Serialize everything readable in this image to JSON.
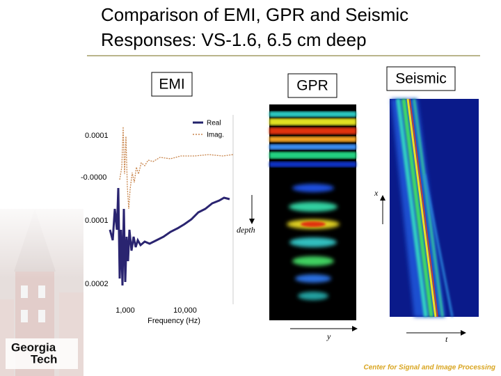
{
  "title": [
    "Comparison of EMI, GPR and Seismic",
    "Responses:  VS-1.6, 6.5 cm deep"
  ],
  "panels": {
    "emi": {
      "label": "EMI",
      "legend": [
        "Real",
        "Imag."
      ],
      "y_labels": [
        "0.0001",
        "-0.0000",
        "0.0001",
        "0.0002"
      ],
      "x_labels": [
        "1,000",
        "10,000"
      ],
      "x_axis_label": "Frequency (Hz)"
    },
    "gpr": {
      "label": "GPR",
      "depth_label": "depth",
      "y_label": "y"
    },
    "seismic": {
      "label": "Seismic",
      "x_label": "x",
      "t_label": "t"
    }
  },
  "logo": [
    "Georgia",
    "Tech"
  ],
  "footer": "Center for Signal and Image Processing"
}
